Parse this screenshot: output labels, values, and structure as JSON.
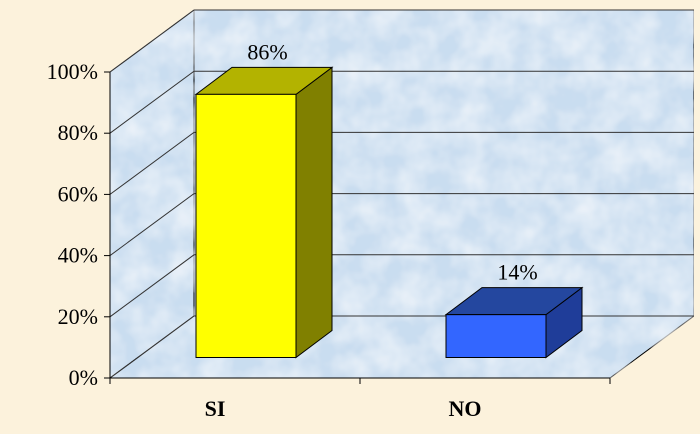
{
  "chart_data": {
    "type": "bar",
    "style": "3d-column",
    "title": "",
    "xlabel": "",
    "ylabel": "",
    "categories": [
      "SI",
      "NO"
    ],
    "values": [
      86,
      14
    ],
    "data_labels": [
      "86%",
      "14%"
    ],
    "ylim": [
      0,
      100
    ],
    "y_ticks": [
      0,
      20,
      40,
      60,
      80,
      100
    ],
    "y_tick_labels": [
      "0%",
      "20%",
      "40%",
      "60%",
      "80%",
      "100%"
    ],
    "grid": true,
    "legend": "none",
    "colors": {
      "background": "#FCF2DC",
      "plot_wall": "#C9DDF0",
      "grid_line": "#333333",
      "series": [
        "#FFFF00",
        "#3366FF"
      ],
      "series_side": [
        "#808000",
        "#1F3D99"
      ],
      "series_top": [
        "#B3B300",
        "#24479F"
      ]
    }
  }
}
